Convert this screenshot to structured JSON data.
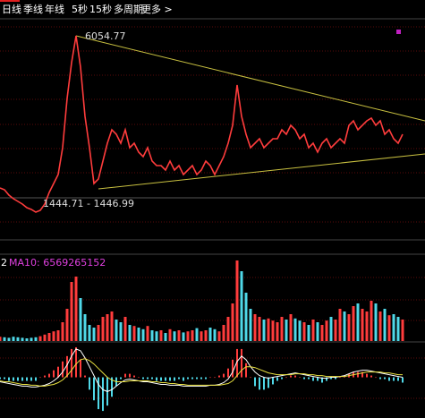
{
  "toolbar": {
    "tabs": [
      "日线",
      "季线",
      "年线",
      "5秒",
      "15秒",
      "多周期",
      "更多 >"
    ]
  },
  "chart_data": [
    {
      "type": "line",
      "x": [
        0,
        1,
        2,
        3,
        4,
        5,
        6,
        7,
        8,
        9,
        10,
        11,
        12,
        13,
        14,
        15,
        16,
        17,
        18,
        19,
        20,
        21,
        22,
        23,
        24,
        25,
        26,
        27,
        28,
        29,
        30,
        31,
        32,
        33,
        34,
        35,
        36,
        37,
        38,
        39,
        40,
        41,
        42,
        43,
        44,
        45,
        46,
        47,
        48,
        49,
        50,
        51,
        52,
        53,
        54,
        55,
        56,
        57,
        58,
        59,
        60,
        61,
        62,
        63,
        64,
        65,
        66,
        67,
        68,
        69,
        70,
        71,
        72,
        73,
        74,
        75,
        76,
        77,
        78,
        79,
        80,
        81,
        82,
        83,
        84,
        85,
        86,
        87,
        88,
        89,
        90
      ],
      "xlim": [
        0,
        95
      ],
      "ylim": [
        720,
        6523
      ],
      "series": [
        {
          "color": "#ff3c3c",
          "values": [
            2077,
            2030,
            1890,
            1796,
            1726,
            1656,
            1562,
            1515,
            1444.71,
            1492,
            1656,
            1960,
            2194,
            2428,
            3130,
            4417,
            5353,
            6054.77,
            5236,
            3949,
            3130,
            2194,
            2311,
            2779,
            3247,
            3598,
            3481,
            3247,
            3598,
            3130,
            3247,
            3013,
            2896,
            3130,
            2779,
            2662,
            2662,
            2545,
            2779,
            2545,
            2662,
            2428,
            2545,
            2662,
            2428,
            2545,
            2779,
            2662,
            2428,
            2662,
            2896,
            3247,
            3715,
            4768,
            3949,
            3481,
            3130,
            3247,
            3364,
            3130,
            3247,
            3364,
            3364,
            3598,
            3481,
            3715,
            3598,
            3364,
            3481,
            3130,
            3247,
            3013,
            3247,
            3364,
            3130,
            3247,
            3364,
            3247,
            3715,
            3832,
            3598,
            3715,
            3832,
            3902,
            3715,
            3832,
            3481,
            3598,
            3364,
            3247,
            3481
          ]
        }
      ],
      "annotations": [
        {
          "text": "6054.77",
          "x": 17,
          "y": 6054.77
        },
        {
          "text": "1444.71 - 1446.99",
          "x": 8,
          "y": 1444.71
        }
      ],
      "trendlines": [
        {
          "color": "#c8c040",
          "x": [
            17,
            95
          ],
          "values": [
            6054.77,
            3832
          ]
        },
        {
          "color": "#c8c040",
          "x": [
            22,
            95
          ],
          "values": [
            2053,
            2966
          ]
        }
      ]
    },
    {
      "type": "bar",
      "title": "2",
      "legend_label": "MA10: 6569265152",
      "legend_color": "#e040e0",
      "up_color": "#ff3c3c",
      "down_color": "#4fd8e8",
      "ylim": [
        0,
        160
      ],
      "values": [
        8,
        7,
        6,
        8,
        7,
        6,
        5,
        6,
        7,
        9,
        12,
        15,
        18,
        20,
        35,
        60,
        110,
        120,
        80,
        50,
        30,
        25,
        30,
        45,
        50,
        55,
        40,
        35,
        45,
        30,
        28,
        25,
        22,
        28,
        20,
        18,
        20,
        15,
        22,
        18,
        20,
        16,
        18,
        20,
        24,
        18,
        20,
        25,
        22,
        18,
        30,
        45,
        70,
        150,
        130,
        90,
        60,
        50,
        45,
        40,
        42,
        38,
        35,
        45,
        40,
        50,
        42,
        38,
        35,
        30,
        40,
        35,
        30,
        38,
        45,
        40,
        60,
        55,
        50,
        65,
        70,
        60,
        55,
        75,
        70,
        55,
        60,
        48,
        50,
        45,
        40
      ]
    },
    {
      "type": "macd",
      "up_color": "#ff3c3c",
      "down_color": "#4fd8e8",
      "ylim": [
        -45,
        37
      ],
      "values": [
        -2,
        -2,
        -4,
        -4,
        -4,
        -4,
        -4,
        -4,
        -4,
        0,
        2,
        4,
        8,
        12,
        18,
        24,
        32,
        34,
        20,
        2,
        -14,
        -26,
        -36,
        -38,
        -32,
        -22,
        -10,
        -2,
        4,
        4,
        2,
        0,
        -2,
        -2,
        -2,
        -4,
        -4,
        -4,
        -4,
        -4,
        -2,
        -4,
        -2,
        -2,
        -2,
        -2,
        -2,
        0,
        0,
        2,
        4,
        10,
        20,
        32,
        32,
        16,
        0,
        -10,
        -14,
        -14,
        -12,
        -8,
        -4,
        -2,
        0,
        2,
        2,
        0,
        -2,
        -2,
        -4,
        -4,
        -6,
        -4,
        -2,
        -2,
        0,
        2,
        4,
        6,
        6,
        6,
        4,
        2,
        0,
        -2,
        -2,
        -4,
        -4,
        -4,
        -6
      ],
      "series": [
        {
          "color": "#ffffff",
          "values": [
            -5,
            -6,
            -7,
            -8,
            -9,
            -10,
            -10,
            -11,
            -11,
            -10,
            -9,
            -7,
            -4,
            0,
            6,
            14,
            24,
            32,
            30,
            22,
            12,
            2,
            -8,
            -14,
            -16,
            -14,
            -10,
            -6,
            -3,
            -2,
            -3,
            -4,
            -5,
            -5,
            -6,
            -7,
            -8,
            -8,
            -9,
            -9,
            -9,
            -10,
            -10,
            -10,
            -10,
            -10,
            -10,
            -9,
            -9,
            -8,
            -6,
            -2,
            6,
            18,
            24,
            20,
            12,
            6,
            2,
            0,
            -1,
            0,
            1,
            2,
            3,
            4,
            5,
            4,
            3,
            2,
            1,
            0,
            -1,
            -1,
            0,
            0,
            1,
            2,
            4,
            6,
            7,
            8,
            8,
            7,
            6,
            5,
            4,
            3,
            2,
            1,
            0
          ]
        },
        {
          "color": "#e8e040",
          "values": [
            -4,
            -5,
            -5,
            -6,
            -7,
            -8,
            -8,
            -9,
            -9,
            -10,
            -10,
            -9,
            -8,
            -6,
            -3,
            2,
            8,
            15,
            20,
            21,
            19,
            15,
            10,
            5,
            0,
            -3,
            -5,
            -5,
            -5,
            -4,
            -4,
            -4,
            -4,
            -4,
            -5,
            -5,
            -6,
            -6,
            -7,
            -7,
            -8,
            -8,
            -9,
            -9,
            -9,
            -9,
            -9,
            -9,
            -9,
            -9,
            -8,
            -7,
            -4,
            2,
            8,
            12,
            12,
            11,
            9,
            7,
            5,
            4,
            3,
            3,
            3,
            3,
            4,
            4,
            4,
            3,
            3,
            2,
            2,
            1,
            1,
            1,
            1,
            1,
            2,
            3,
            4,
            5,
            6,
            6,
            6,
            6,
            5,
            5,
            4,
            3,
            3
          ]
        }
      ]
    }
  ]
}
